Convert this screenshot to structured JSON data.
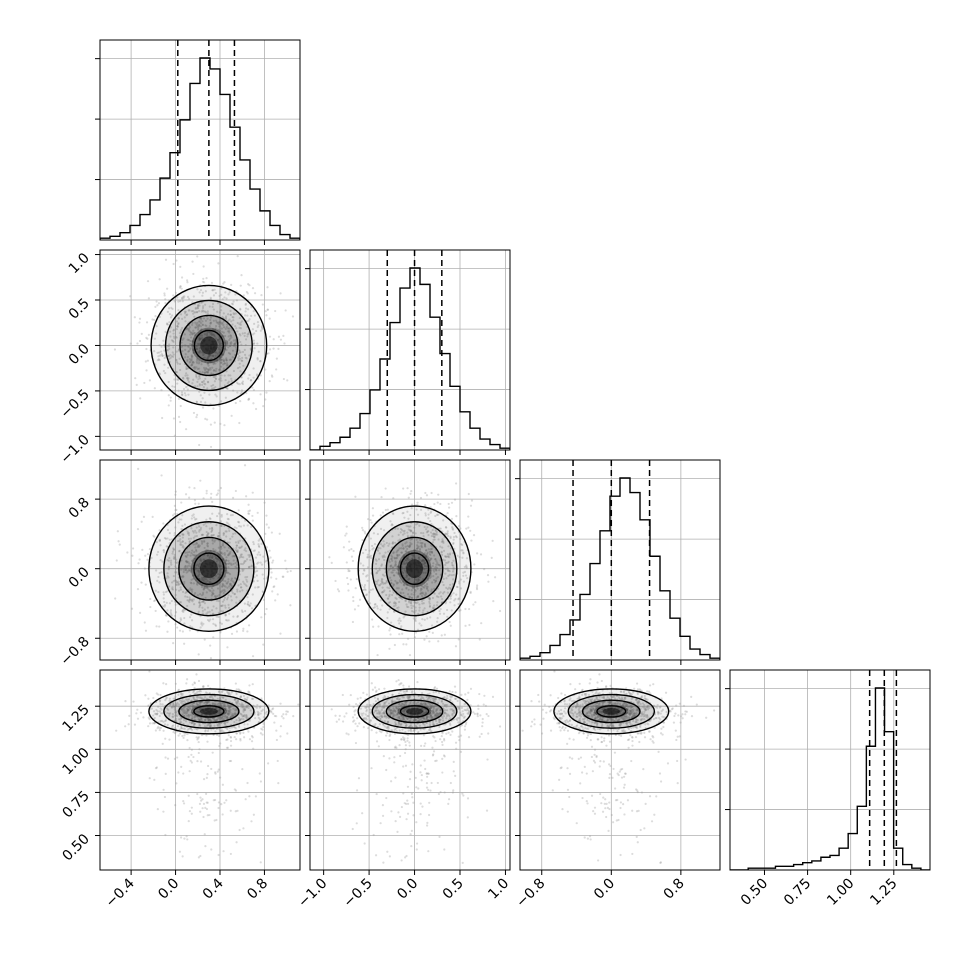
{
  "chart_data": {
    "type": "corner",
    "figure_title": "",
    "variables": [
      "",
      "",
      "",
      ""
    ],
    "quantiles": [
      [
        0.02,
        0.3,
        0.53
      ],
      [
        -0.3,
        0.0,
        0.3
      ],
      [
        -0.44,
        0.0,
        0.44
      ],
      [
        1.11,
        1.195,
        1.265
      ]
    ],
    "axis_ranges": [
      [
        -0.68,
        1.12
      ],
      [
        -1.15,
        1.05
      ],
      [
        -1.05,
        1.25
      ],
      [
        0.3,
        1.46
      ]
    ],
    "histograms": [
      {
        "variable": 0,
        "bin_edges_range": [
          -0.68,
          1.12
        ],
        "counts": [
          1,
          2,
          4,
          8,
          14,
          22,
          34,
          48,
          66,
          86,
          100,
          94,
          80,
          62,
          44,
          28,
          16,
          8,
          3,
          1
        ]
      },
      {
        "variable": 1,
        "bin_edges_range": [
          -1.15,
          1.05
        ],
        "counts": [
          0,
          2,
          4,
          7,
          12,
          20,
          33,
          50,
          70,
          89,
          100,
          91,
          73,
          53,
          35,
          21,
          12,
          6,
          3,
          1
        ]
      },
      {
        "variable": 2,
        "bin_edges_range": [
          -1.05,
          1.25
        ],
        "counts": [
          1,
          2,
          4,
          8,
          14,
          22,
          36,
          53,
          71,
          90,
          100,
          92,
          77,
          57,
          38,
          23,
          13,
          6,
          3,
          1
        ]
      },
      {
        "variable": 3,
        "bin_edges_range": [
          0.3,
          1.46
        ],
        "counts": [
          0,
          0,
          1,
          1,
          1,
          2,
          2,
          3,
          4,
          5,
          7,
          8,
          12,
          20,
          35,
          68,
          100,
          76,
          12,
          3,
          1,
          0
        ]
      }
    ],
    "pair_plots": [
      {
        "x": 0,
        "y": 1,
        "center": [
          0.3,
          0.0
        ],
        "spread": [
          0.26,
          0.33
        ],
        "tail_down": 0
      },
      {
        "x": 0,
        "y": 2,
        "center": [
          0.3,
          0.0
        ],
        "spread": [
          0.27,
          0.36
        ],
        "tail_down": 0
      },
      {
        "x": 1,
        "y": 2,
        "center": [
          0.0,
          0.0
        ],
        "spread": [
          0.31,
          0.36
        ],
        "tail_down": 0
      },
      {
        "x": 0,
        "y": 3,
        "center": [
          0.3,
          1.22
        ],
        "spread": [
          0.27,
          0.065
        ],
        "tail_down": 0.45
      },
      {
        "x": 1,
        "y": 3,
        "center": [
          0.0,
          1.22
        ],
        "spread": [
          0.31,
          0.065
        ],
        "tail_down": 0.45
      },
      {
        "x": 2,
        "y": 3,
        "center": [
          0.0,
          1.22
        ],
        "spread": [
          0.33,
          0.065
        ],
        "tail_down": 0.45
      }
    ],
    "tick_labels": {
      "x": [
        [
          "−0.4",
          "0.0",
          "0.4",
          "0.8"
        ],
        [
          "−1.0",
          "−0.5",
          "0.0",
          "0.5",
          "1.0"
        ],
        [
          "−0.8",
          "0.0",
          "0.8"
        ],
        [
          "0.50",
          "0.75",
          "1.00",
          "1.25"
        ]
      ],
      "y": [
        [],
        [
          "1.0",
          "0.5",
          "0.0",
          "−0.5",
          "−1.0"
        ],
        [
          "0.8",
          "0.0",
          "−0.8"
        ],
        [
          "1.25",
          "1.00",
          "0.75",
          "0.50"
        ]
      ]
    },
    "tick_values": {
      "x": [
        [
          -0.4,
          0.0,
          0.4,
          0.8
        ],
        [
          -1.0,
          -0.5,
          0.0,
          0.5,
          1.0
        ],
        [
          -0.8,
          0.0,
          0.8
        ],
        [
          0.5,
          0.75,
          1.0,
          1.25
        ]
      ],
      "y": [
        [],
        [
          1.0,
          0.5,
          0.0,
          -0.5,
          -1.0
        ],
        [
          0.8,
          0.0,
          -0.8
        ],
        [
          1.25,
          1.0,
          0.75,
          0.5
        ]
      ]
    },
    "grid": true,
    "legend": "none",
    "colors": {
      "line": "#000000",
      "grid": "#b0b0b0",
      "points": "#9a9a9a",
      "density": "#000000"
    }
  }
}
